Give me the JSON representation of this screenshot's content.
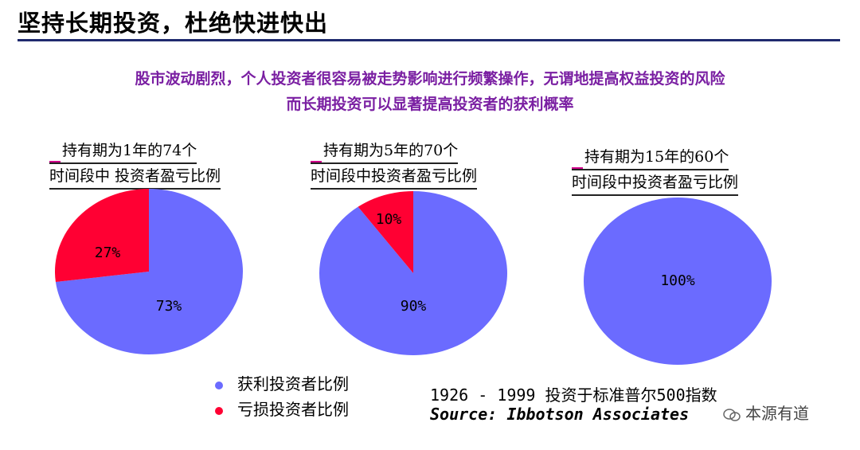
{
  "header": {
    "title": "坚持长期投资，杜绝快进快出"
  },
  "subtitle": {
    "line1": "股市波动剧烈，个人投资者很容易被走势影响进行频繁操作，无谓地提高权益投资的风险",
    "line2": "而长期投资可以显著提高投资者的获利概率"
  },
  "colors": {
    "profit": "#6b6bff",
    "loss": "#ff0033"
  },
  "chart_data": [
    {
      "type": "pie",
      "title": [
        "持有期为1年的74个",
        "时间段中 投资者盈亏比例"
      ],
      "slices": [
        {
          "name": "获利投资者比例",
          "value": 73,
          "label": "73%"
        },
        {
          "name": "亏损投资者比例",
          "value": 27,
          "label": "27%"
        }
      ]
    },
    {
      "type": "pie",
      "title": [
        "持有期为5年的70个",
        "时间段中投资者盈亏比例"
      ],
      "slices": [
        {
          "name": "获利投资者比例",
          "value": 90,
          "label": "90%"
        },
        {
          "name": "亏损投资者比例",
          "value": 10,
          "label": "10%"
        }
      ]
    },
    {
      "type": "pie",
      "title": [
        "持有期为15年的60个",
        "时间段中投资者盈亏比例"
      ],
      "slices": [
        {
          "name": "获利投资者比例",
          "value": 100,
          "label": "100%"
        }
      ]
    }
  ],
  "legend": {
    "profit": "获利投资者比例",
    "loss": "亏损投资者比例"
  },
  "source": {
    "line1": "1926  -  1999 投资于标准普尔500指数",
    "line2": "Source: Ibbotson Associates"
  },
  "watermark": {
    "text": "本源有道"
  }
}
